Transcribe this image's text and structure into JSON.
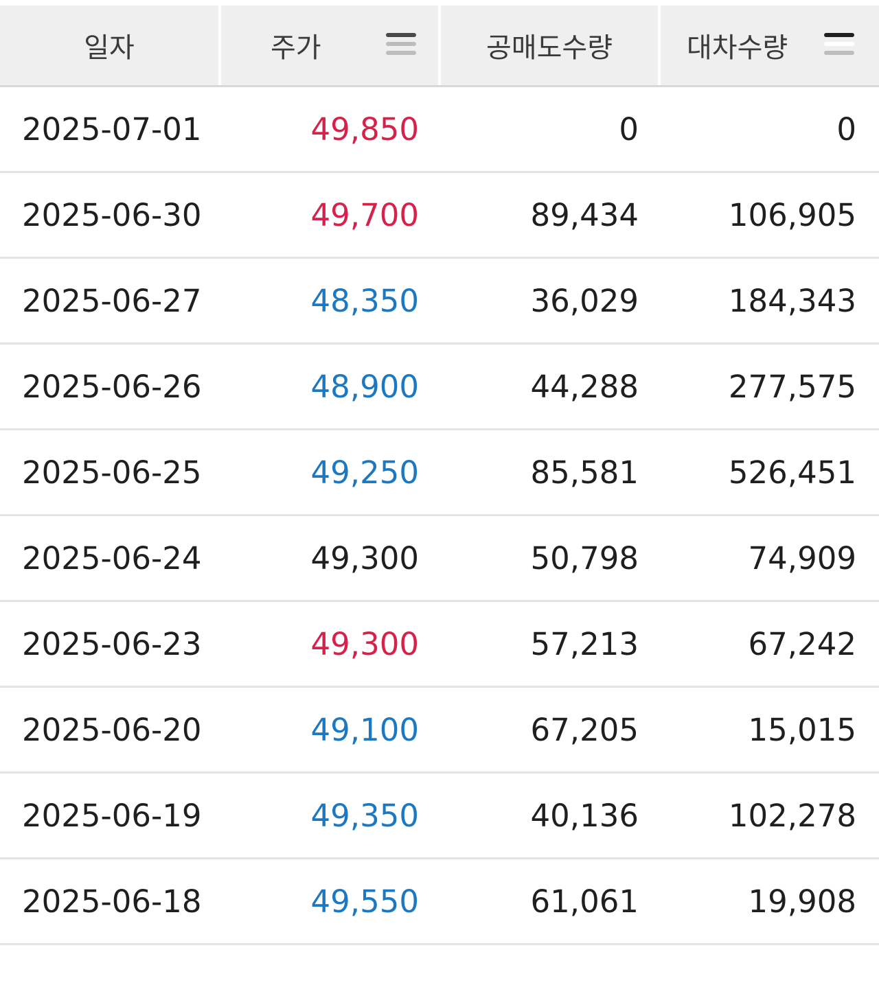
{
  "columns": {
    "date": "일자",
    "price": "주가",
    "short_volume": "공매도수량",
    "lending_volume": "대차수량"
  },
  "rows": [
    {
      "date": "2025-07-01",
      "price": "49,850",
      "price_color": "up",
      "short_volume": "0",
      "lending_volume": "0"
    },
    {
      "date": "2025-06-30",
      "price": "49,700",
      "price_color": "up",
      "short_volume": "89,434",
      "lending_volume": "106,905"
    },
    {
      "date": "2025-06-27",
      "price": "48,350",
      "price_color": "down",
      "short_volume": "36,029",
      "lending_volume": "184,343"
    },
    {
      "date": "2025-06-26",
      "price": "48,900",
      "price_color": "down",
      "short_volume": "44,288",
      "lending_volume": "277,575"
    },
    {
      "date": "2025-06-25",
      "price": "49,250",
      "price_color": "down",
      "short_volume": "85,581",
      "lending_volume": "526,451"
    },
    {
      "date": "2025-06-24",
      "price": "49,300",
      "price_color": "flat",
      "short_volume": "50,798",
      "lending_volume": "74,909"
    },
    {
      "date": "2025-06-23",
      "price": "49,300",
      "price_color": "up",
      "short_volume": "57,213",
      "lending_volume": "67,242"
    },
    {
      "date": "2025-06-20",
      "price": "49,100",
      "price_color": "down",
      "short_volume": "67,205",
      "lending_volume": "15,015"
    },
    {
      "date": "2025-06-19",
      "price": "49,350",
      "price_color": "down",
      "short_volume": "40,136",
      "lending_volume": "102,278"
    },
    {
      "date": "2025-06-18",
      "price": "49,550",
      "price_color": "down",
      "short_volume": "61,061",
      "lending_volume": "19,908"
    }
  ],
  "colors": {
    "up": "#d6224a",
    "down": "#1c78c0",
    "flat": "#1f1f1f",
    "header_bg": "#efefef"
  },
  "icons": {
    "price_sort": "sort-lines-icon",
    "lending_sort": "sort-lines-icon"
  }
}
